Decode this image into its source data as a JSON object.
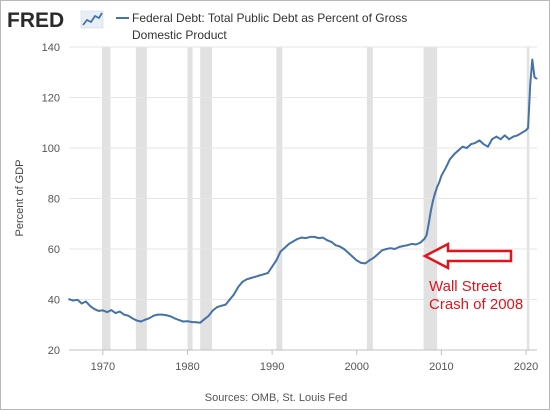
{
  "branding": {
    "logo_text": "FRED",
    "logo_icon": "mini-line-chart-icon"
  },
  "legend": {
    "line1": "Federal Debt: Total Public Debt as Percent of Gross",
    "line2": "Domestic Product",
    "color": "#4572a7"
  },
  "source": "Sources: OMB, St. Louis Fed",
  "annotation": {
    "line1": "Wall Street",
    "line2": "Crash of 2008",
    "color": "#e0141e",
    "arrow_icon": "left-arrow-icon",
    "points_to_year": 2008
  },
  "chart_data": {
    "type": "line",
    "title": "Federal Debt: Total Public Debt as Percent of Gross Domestic Product",
    "xlabel": "",
    "ylabel": "Percent of GDP",
    "xlim": [
      1966,
      2021.3
    ],
    "ylim": [
      20,
      140
    ],
    "xticks": [
      1970,
      1980,
      1990,
      2000,
      2010,
      2020
    ],
    "yticks": [
      20,
      40,
      60,
      80,
      100,
      120,
      140
    ],
    "grid": "horizontal",
    "recessions": [
      [
        1969.9,
        1970.9
      ],
      [
        1973.9,
        1975.2
      ],
      [
        1980.0,
        1980.6
      ],
      [
        1981.5,
        1982.9
      ],
      [
        1990.5,
        1991.2
      ],
      [
        2001.2,
        2001.9
      ],
      [
        2007.9,
        2009.5
      ],
      [
        2020.1,
        2020.4
      ]
    ],
    "series": [
      {
        "name": "Federal Debt: Total Public Debt as Percent of Gross Domestic Product",
        "color": "#4572a7",
        "x": [
          1966.0,
          1966.5,
          1967.0,
          1967.5,
          1968.0,
          1968.5,
          1969.0,
          1969.5,
          1970.0,
          1970.5,
          1971.0,
          1971.5,
          1972.0,
          1972.5,
          1973.0,
          1973.5,
          1974.0,
          1974.5,
          1975.0,
          1975.5,
          1976.0,
          1976.5,
          1977.0,
          1977.5,
          1978.0,
          1978.5,
          1979.0,
          1979.5,
          1980.0,
          1980.5,
          1981.0,
          1981.5,
          1982.0,
          1982.5,
          1983.0,
          1983.5,
          1984.0,
          1984.5,
          1985.0,
          1985.5,
          1986.0,
          1986.5,
          1987.0,
          1987.5,
          1988.0,
          1988.5,
          1989.0,
          1989.5,
          1990.0,
          1990.5,
          1991.0,
          1991.5,
          1992.0,
          1992.5,
          1993.0,
          1993.5,
          1994.0,
          1994.5,
          1995.0,
          1995.5,
          1996.0,
          1996.5,
          1997.0,
          1997.5,
          1998.0,
          1998.5,
          1999.0,
          1999.5,
          2000.0,
          2000.5,
          2001.0,
          2001.5,
          2002.0,
          2002.5,
          2003.0,
          2003.5,
          2004.0,
          2004.5,
          2005.0,
          2005.5,
          2006.0,
          2006.5,
          2007.0,
          2007.5,
          2008.0,
          2008.25,
          2008.5,
          2008.75,
          2009.0,
          2009.25,
          2009.5,
          2009.75,
          2010.0,
          2010.5,
          2011.0,
          2011.5,
          2012.0,
          2012.5,
          2013.0,
          2013.5,
          2014.0,
          2014.5,
          2015.0,
          2015.5,
          2016.0,
          2016.5,
          2017.0,
          2017.5,
          2018.0,
          2018.5,
          2019.0,
          2019.5,
          2020.0,
          2020.25,
          2020.5,
          2020.75,
          2021.0,
          2021.25
        ],
        "values": [
          40.1,
          39.6,
          39.9,
          38.4,
          39.2,
          37.4,
          36.2,
          35.5,
          35.7,
          35.0,
          35.8,
          34.6,
          35.2,
          34.0,
          33.6,
          32.5,
          31.7,
          31.3,
          32.0,
          32.6,
          33.6,
          34.0,
          34.0,
          33.8,
          33.3,
          32.5,
          31.9,
          31.3,
          31.4,
          31.1,
          31.0,
          30.8,
          32.2,
          33.5,
          35.7,
          37.0,
          37.5,
          38.0,
          40.0,
          42.0,
          45.0,
          47.0,
          48.0,
          48.5,
          49.0,
          49.5,
          50.0,
          50.5,
          53.0,
          55.5,
          59.0,
          60.5,
          62.0,
          63.0,
          64.0,
          64.5,
          64.3,
          64.8,
          64.8,
          64.3,
          64.5,
          63.5,
          62.8,
          61.5,
          61.0,
          60.0,
          58.5,
          57.0,
          55.5,
          54.5,
          54.3,
          55.5,
          56.5,
          58.0,
          59.5,
          60.0,
          60.3,
          60.0,
          60.8,
          61.2,
          61.5,
          62.0,
          61.8,
          62.5,
          64.0,
          65.5,
          70.0,
          75.0,
          79.0,
          82.0,
          84.5,
          86.5,
          89.0,
          92.0,
          95.5,
          97.5,
          99.0,
          100.5,
          100.0,
          101.5,
          102.0,
          103.0,
          101.5,
          100.5,
          103.5,
          104.5,
          103.5,
          105.0,
          103.5,
          104.5,
          105.0,
          106.0,
          107.0,
          108.0,
          125.0,
          135.0,
          128.0,
          127.5
        ]
      }
    ]
  }
}
